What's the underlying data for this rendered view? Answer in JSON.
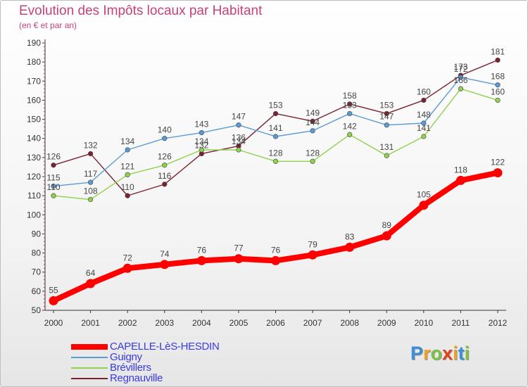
{
  "chart_data": {
    "type": "line",
    "title": "Evolution des Impôts locaux par Habitant",
    "subtitle": "(en € et par an)",
    "xlabel": "",
    "ylabel": "",
    "x": [
      "2000",
      "2001",
      "2002",
      "2003",
      "2004",
      "2005",
      "2006",
      "2007",
      "2008",
      "2009",
      "2010",
      "2011",
      "2012"
    ],
    "ylim": [
      50,
      190
    ],
    "yticks": [
      50,
      60,
      70,
      80,
      90,
      100,
      110,
      120,
      130,
      140,
      150,
      160,
      170,
      180,
      190
    ],
    "grid": false,
    "legend_position": "bottom-left",
    "series": [
      {
        "name": "CAPELLE-LèS-HESDIN",
        "color": "#ff0000",
        "values": [
          55,
          64,
          72,
          74,
          76,
          77,
          76,
          79,
          83,
          89,
          105,
          118,
          122
        ]
      },
      {
        "name": "Guigny",
        "color": "#5b9bd5",
        "values": [
          115,
          117,
          134,
          140,
          143,
          147,
          141,
          144,
          153,
          147,
          148,
          172,
          168
        ]
      },
      {
        "name": "Brévillers",
        "color": "#8fd14f",
        "values": [
          110,
          108,
          121,
          126,
          134,
          134,
          128,
          128,
          142,
          131,
          141,
          166,
          160
        ]
      },
      {
        "name": "Regnauville",
        "color": "#7a2230",
        "values": [
          126,
          132,
          110,
          116,
          132,
          136,
          153,
          149,
          158,
          153,
          160,
          173,
          181
        ]
      }
    ]
  },
  "brand": {
    "letters": [
      "P",
      "r",
      "o",
      "x",
      "i",
      "t",
      "i"
    ],
    "colors": [
      "#3a8fd8",
      "#f0a020",
      "#7cc242",
      "#e2401c",
      "#f0a020",
      "#3a8fd8",
      "#7cc242"
    ]
  }
}
